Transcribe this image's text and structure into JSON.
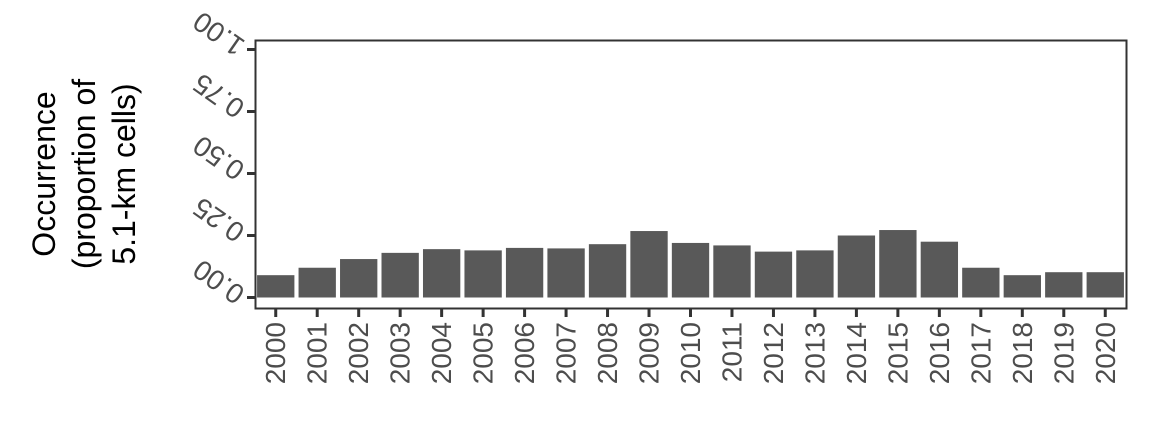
{
  "chart_data": {
    "type": "bar",
    "title": "",
    "xlabel": "",
    "ylabel_lines": [
      "Occurrence",
      "(proportion of",
      "5.1-km cells)"
    ],
    "categories": [
      "2000",
      "2001",
      "2002",
      "2003",
      "2004",
      "2005",
      "2006",
      "2007",
      "2008",
      "2009",
      "2010",
      "2011",
      "2012",
      "2013",
      "2014",
      "2015",
      "2016",
      "2017",
      "2018",
      "2019",
      "2020"
    ],
    "values": [
      0.09,
      0.12,
      0.155,
      0.18,
      0.195,
      0.19,
      0.2,
      0.198,
      0.215,
      0.268,
      0.22,
      0.21,
      0.185,
      0.19,
      0.25,
      0.272,
      0.225,
      0.12,
      0.09,
      0.102,
      0.102
    ],
    "yticks": [
      0,
      0.25,
      0.5,
      0.75,
      1
    ],
    "ytick_labels": [
      "0.00",
      "0.25",
      "0.50",
      "0.75",
      "1.00"
    ],
    "ylim": [
      -0.05,
      1.03
    ],
    "bar_color": "#595959",
    "axis_color": "#333333",
    "grid": false
  }
}
